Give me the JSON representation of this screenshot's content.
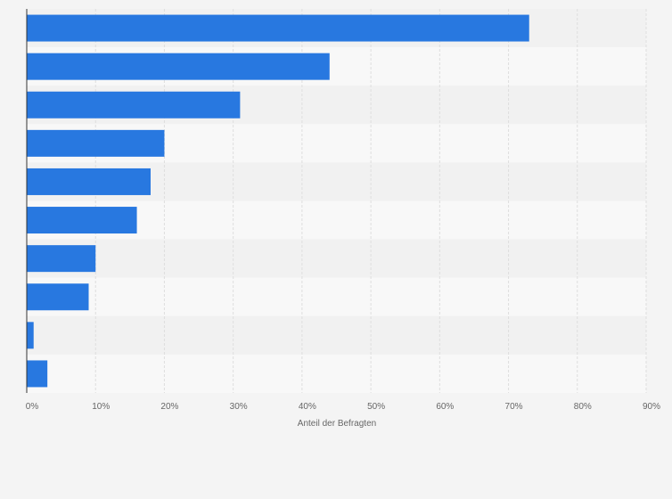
{
  "chart_data": {
    "type": "bar",
    "orientation": "horizontal",
    "title": "",
    "xlabel": "Anteil der Befragten",
    "ylabel": "",
    "xlim": [
      0,
      90
    ],
    "x_ticks": [
      "0%",
      "10%",
      "20%",
      "30%",
      "40%",
      "50%",
      "60%",
      "70%",
      "80%",
      "90%"
    ],
    "categories": [
      "",
      "",
      "",
      "",
      "",
      "",
      "",
      "",
      "",
      ""
    ],
    "values": [
      73,
      44,
      31,
      20,
      18,
      16,
      10,
      9,
      1,
      3
    ],
    "unit": "%",
    "grid": "vertical",
    "legend": "none"
  },
  "colors": {
    "bar": "#2878e0",
    "background": "#f4f4f4",
    "band_light": "#f8f8f8",
    "band_dark": "#f1f1f1",
    "grid": "#dedede",
    "axis": "#333333"
  }
}
